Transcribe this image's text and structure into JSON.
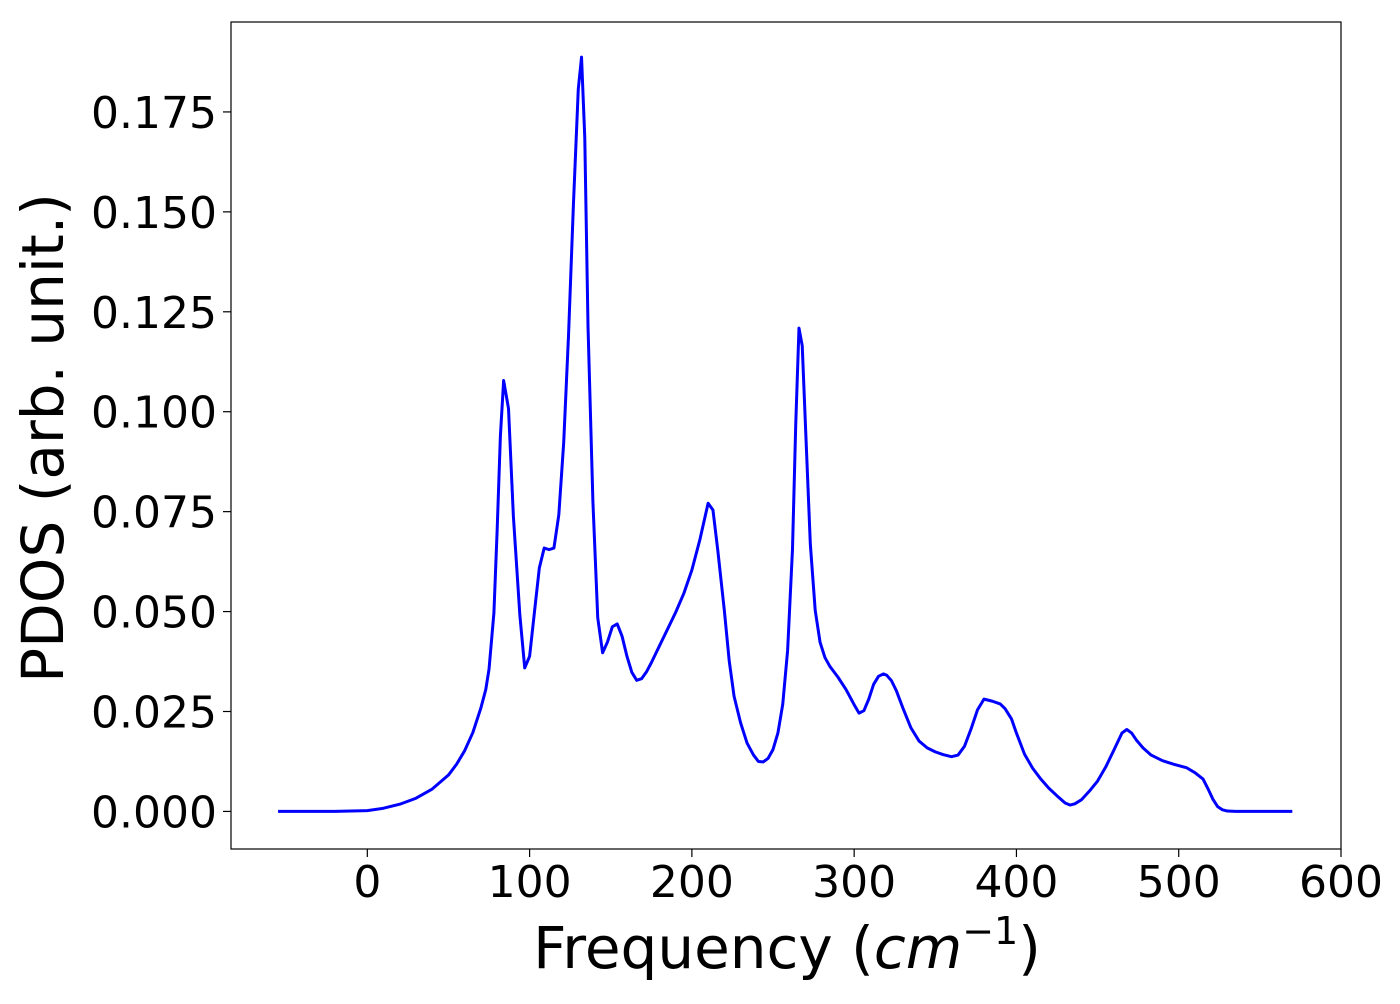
{
  "chart_data": {
    "type": "line",
    "xlabel": "Frequency (",
    "xlabel_math_base": "cm",
    "xlabel_math_exp": "−1",
    "xlabel_close": ")",
    "ylabel": "PDOS (arb. unit.)",
    "xlim": [
      -84,
      600
    ],
    "ylim": [
      -0.0094,
      0.1975
    ],
    "x_ticks": [
      0,
      100,
      200,
      300,
      400,
      500,
      600
    ],
    "x_tick_labels": [
      "0",
      "100",
      "200",
      "300",
      "400",
      "500",
      "600"
    ],
    "y_ticks": [
      0.0,
      0.025,
      0.05,
      0.075,
      0.1,
      0.125,
      0.15,
      0.175
    ],
    "y_tick_labels": [
      "0.000",
      "0.025",
      "0.050",
      "0.075",
      "0.100",
      "0.125",
      "0.150",
      "0.175"
    ],
    "grid": false,
    "legend": "none",
    "series": [
      {
        "color": "#0000ff",
        "x": [
          -55,
          -20,
          0,
          10,
          20,
          30,
          40,
          50,
          55,
          60,
          65,
          70,
          73,
          75,
          78,
          80,
          82,
          84,
          87,
          90,
          94,
          97,
          100,
          103,
          106,
          109,
          112,
          115,
          118,
          121,
          124,
          127,
          130,
          132,
          134,
          136,
          139,
          142,
          145,
          148,
          151,
          154,
          157,
          160,
          163,
          166,
          169,
          172,
          175,
          180,
          185,
          190,
          195,
          200,
          205,
          208,
          210,
          213,
          216,
          220,
          223,
          226,
          230,
          234,
          238,
          241,
          244,
          247,
          250,
          253,
          256,
          259,
          262,
          264,
          266,
          268,
          270,
          273,
          276,
          279,
          282,
          285,
          290,
          295,
          300,
          303,
          306,
          309,
          312,
          315,
          318,
          320,
          323,
          326,
          330,
          335,
          340,
          345,
          350,
          355,
          360,
          364,
          368,
          372,
          376,
          380,
          385,
          390,
          393,
          397,
          400,
          405,
          410,
          415,
          420,
          425,
          430,
          433,
          436,
          440,
          445,
          450,
          455,
          460,
          465,
          468,
          471,
          474,
          478,
          483,
          490,
          497,
          505,
          510,
          515,
          518,
          521,
          524,
          527,
          530,
          535,
          570
        ],
        "values": [
          0.0,
          0.0,
          0.0002,
          0.0008,
          0.0018,
          0.0033,
          0.0056,
          0.0091,
          0.0118,
          0.0152,
          0.0197,
          0.0259,
          0.0305,
          0.0356,
          0.0496,
          0.0703,
          0.0939,
          0.1078,
          0.1008,
          0.0739,
          0.0491,
          0.0359,
          0.0388,
          0.0499,
          0.0609,
          0.0659,
          0.0655,
          0.0659,
          0.0742,
          0.0922,
          0.1192,
          0.1518,
          0.1807,
          0.1887,
          0.1686,
          0.1213,
          0.0776,
          0.0484,
          0.0397,
          0.0424,
          0.0462,
          0.0469,
          0.0438,
          0.0388,
          0.0348,
          0.0328,
          0.0332,
          0.0349,
          0.0372,
          0.0414,
          0.0456,
          0.0498,
          0.0545,
          0.0604,
          0.0681,
          0.0735,
          0.0771,
          0.0754,
          0.0652,
          0.0503,
          0.0377,
          0.0288,
          0.0222,
          0.0171,
          0.0141,
          0.0125,
          0.0124,
          0.0133,
          0.0155,
          0.0196,
          0.0268,
          0.0403,
          0.0656,
          0.0969,
          0.1209,
          0.1165,
          0.0965,
          0.0668,
          0.0503,
          0.0423,
          0.0385,
          0.0363,
          0.0336,
          0.0305,
          0.0267,
          0.0246,
          0.0252,
          0.0281,
          0.0318,
          0.0338,
          0.0344,
          0.0341,
          0.0327,
          0.0302,
          0.0259,
          0.0209,
          0.0176,
          0.0159,
          0.0149,
          0.0142,
          0.0137,
          0.0141,
          0.0163,
          0.0206,
          0.0254,
          0.0281,
          0.0276,
          0.0269,
          0.0257,
          0.0231,
          0.0196,
          0.0143,
          0.0108,
          0.0081,
          0.0058,
          0.0039,
          0.0021,
          0.0016,
          0.0019,
          0.0029,
          0.0051,
          0.0076,
          0.0111,
          0.0153,
          0.0196,
          0.0205,
          0.0196,
          0.0178,
          0.0159,
          0.0141,
          0.0127,
          0.0118,
          0.0109,
          0.0097,
          0.0081,
          0.0057,
          0.0031,
          0.0012,
          0.0004,
          0.0001,
          0.0,
          0.0
        ]
      }
    ]
  }
}
